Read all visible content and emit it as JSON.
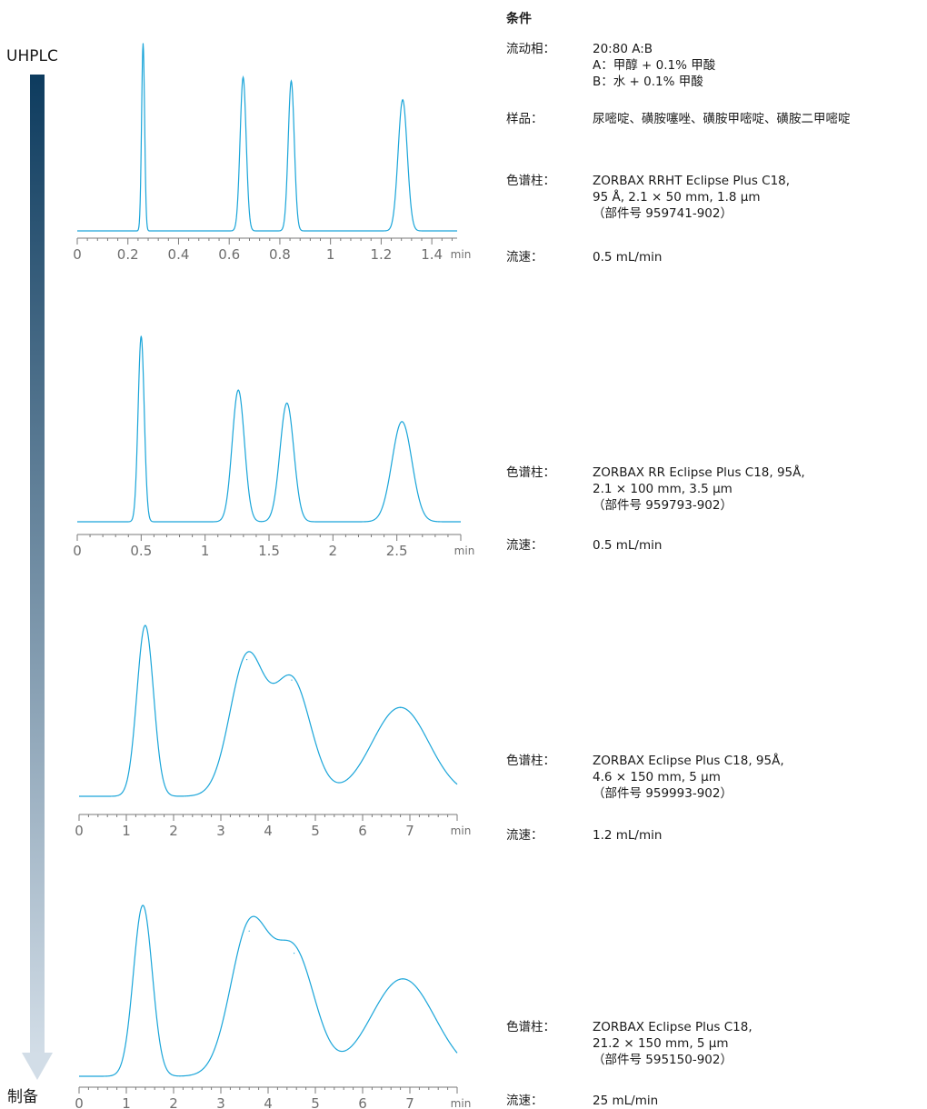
{
  "side": {
    "top_label": "UHPLC",
    "bottom_label": "制备"
  },
  "colors": {
    "trace": "#1aa5d9",
    "axis": "#7a7a7a",
    "tick_text": "#6e6e6e",
    "arrow_top": "#0d3b5e",
    "arrow_bottom": "#d2dde7"
  },
  "conditions": {
    "title": "条件",
    "mobile_phase": {
      "label": "流动相：",
      "lines": [
        "20:80 A:B",
        "A：甲醇 + 0.1% 甲酸",
        "B：水 + 0.1% 甲酸"
      ]
    },
    "sample": {
      "label": "样品：",
      "value": "尿嘧啶、磺胺噻唑、磺胺甲嘧啶、磺胺二甲嘧啶"
    }
  },
  "chart_data": [
    {
      "type": "line",
      "xlabel": "min",
      "xlim": [
        0,
        1.5
      ],
      "ticks": [
        0,
        0.2,
        0.4,
        0.6,
        0.8,
        1,
        1.2,
        1.4
      ],
      "tick_labels": [
        "0",
        "0.2",
        "0.4",
        "0.6",
        "0.8",
        "1",
        "1.2",
        "1.4"
      ],
      "peaks": [
        {
          "rt": 0.26,
          "height": 1.0,
          "width": 0.004
        },
        {
          "rt": 0.655,
          "height": 0.82,
          "width": 0.008
        },
        {
          "rt": 0.845,
          "height": 0.8,
          "width": 0.008
        },
        {
          "rt": 1.285,
          "height": 0.7,
          "width": 0.012
        }
      ],
      "column_label": "色谱柱：",
      "column": [
        "ZORBAX RRHT Eclipse Plus C18,",
        "95 Å, 2.1 × 50 mm, 1.8 µm",
        "（部件号 959741-902）"
      ],
      "flow_label": "流速：",
      "flow": "0.5 mL/min"
    },
    {
      "type": "line",
      "xlabel": "min",
      "xlim": [
        0,
        3.0
      ],
      "ticks": [
        0,
        0.5,
        1,
        1.5,
        2,
        2.5
      ],
      "tick_labels": [
        "0",
        "0.5",
        "1",
        "1.5",
        "2",
        "2.5"
      ],
      "peaks": [
        {
          "rt": 0.5,
          "height": 1.0,
          "width": 0.008
        },
        {
          "rt": 1.26,
          "height": 0.71,
          "width": 0.016
        },
        {
          "rt": 1.64,
          "height": 0.64,
          "width": 0.018
        },
        {
          "rt": 2.54,
          "height": 0.54,
          "width": 0.026
        }
      ],
      "column_label": "色谱柱：",
      "column": [
        "ZORBAX RR Eclipse Plus C18, 95Å,",
        "2.1 × 100 mm, 3.5 µm",
        "（部件号 959793-902）"
      ],
      "flow_label": "流速：",
      "flow": "0.5 mL/min"
    },
    {
      "type": "line",
      "xlabel": "min",
      "xlim": [
        0,
        8.0
      ],
      "ticks": [
        0,
        1,
        2,
        3,
        4,
        5,
        6,
        7
      ],
      "tick_labels": [
        "0",
        "1",
        "2",
        "3",
        "4",
        "5",
        "6",
        "7"
      ],
      "peaks": [
        {
          "rt": 1.4,
          "height": 1.0,
          "width": 0.022
        },
        {
          "rt": 3.55,
          "height": 0.8,
          "width": 0.045
        },
        {
          "rt": 4.5,
          "height": 0.68,
          "width": 0.05
        },
        {
          "rt": 6.8,
          "height": 0.52,
          "width": 0.075
        }
      ],
      "column_label": "色谱柱：",
      "column": [
        "ZORBAX Eclipse Plus C18, 95Å,",
        "4.6 × 150 mm, 5 µm",
        "（部件号 959993-902）"
      ],
      "flow_label": "流速：",
      "flow": "1.2 mL/min"
    },
    {
      "type": "line",
      "xlabel": "min",
      "xlim": [
        0,
        8.0
      ],
      "ticks": [
        0,
        1,
        2,
        3,
        4,
        5,
        6,
        7
      ],
      "tick_labels": [
        "0",
        "1",
        "2",
        "3",
        "4",
        "5",
        "6",
        "7"
      ],
      "peaks": [
        {
          "rt": 1.35,
          "height": 1.0,
          "width": 0.025
        },
        {
          "rt": 3.6,
          "height": 0.85,
          "width": 0.05
        },
        {
          "rt": 4.55,
          "height": 0.72,
          "width": 0.055
        },
        {
          "rt": 6.85,
          "height": 0.57,
          "width": 0.085
        }
      ],
      "column_label": "色谱柱：",
      "column": [
        "ZORBAX Eclipse Plus C18,",
        "21.2 × 150 mm, 5 µm",
        "（部件号 595150-902）"
      ],
      "flow_label": "流速：",
      "flow": "25 mL/min"
    }
  ]
}
